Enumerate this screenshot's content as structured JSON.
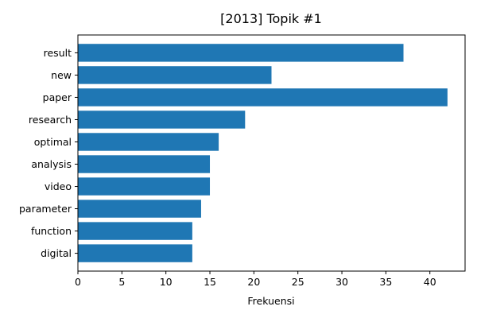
{
  "chart_data": {
    "type": "bar",
    "orientation": "horizontal",
    "title": "[2013] Topik #1",
    "xlabel": "Frekuensi",
    "ylabel": "",
    "categories": [
      "result",
      "new",
      "paper",
      "research",
      "optimal",
      "analysis",
      "video",
      "parameter",
      "function",
      "digital"
    ],
    "values": [
      37,
      22,
      42,
      19,
      16,
      15,
      15,
      14,
      13,
      13
    ],
    "xlim": [
      0,
      44
    ],
    "xticks": [
      0,
      5,
      10,
      15,
      20,
      25,
      30,
      35,
      40
    ],
    "grid": false,
    "legend": "none",
    "bar_color": "#1f77b4"
  }
}
